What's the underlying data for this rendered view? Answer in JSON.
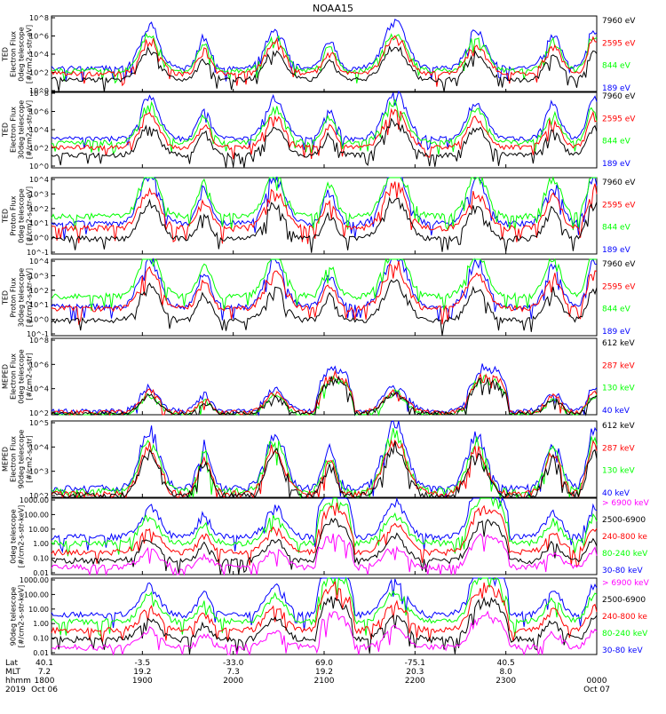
{
  "title": "NOAA15",
  "colors": {
    "blue": "#0000ff",
    "red": "#ff0000",
    "green": "#00ff00",
    "black": "#000000",
    "magenta": "#ff00ff",
    "axis": "#000000"
  },
  "chart_data": [
    {
      "type": "line",
      "panel": 1,
      "ylabel": [
        "TED",
        "Electron Flux",
        "0deg telescope",
        "[#/cm2-s-str-eV]"
      ],
      "yscale": "log",
      "ylim": [
        1,
        1000000
      ],
      "ticks": [
        "10^8",
        "10^6",
        "10^4",
        "10^2",
        "10^0"
      ],
      "legend": [
        {
          "label": "7960 eV",
          "color": "#000000"
        },
        {
          "label": "2595 eV",
          "color": "#ff0000"
        },
        {
          "label": "844 eV",
          "color": "#00ff00"
        },
        {
          "label": "189 eV",
          "color": "#0000ff"
        }
      ],
      "series": [
        {
          "name": "189 eV",
          "color": "#0000ff",
          "base": 80,
          "peak": 1.4
        },
        {
          "name": "844 eV",
          "color": "#00ff00",
          "base": 50,
          "peak": 1.2
        },
        {
          "name": "2595 eV",
          "color": "#ff0000",
          "base": 30,
          "peak": 1.1
        },
        {
          "name": "7960 eV",
          "color": "#000000",
          "base": 10,
          "peak": 1.0
        }
      ]
    },
    {
      "type": "line",
      "panel": 2,
      "ylabel": [
        "TED",
        "Electron Flux",
        "30deg telescope",
        "[#/cm2-s-str-eV]"
      ],
      "yscale": "log",
      "ylim": [
        1,
        1000000
      ],
      "ticks": [
        "10^8",
        "10^6",
        "10^4",
        "10^2",
        "10^0"
      ],
      "legend": [
        {
          "label": "7960 eV",
          "color": "#000000"
        },
        {
          "label": "2595 eV",
          "color": "#ff0000"
        },
        {
          "label": "844 eV",
          "color": "#00ff00"
        },
        {
          "label": "189 eV",
          "color": "#0000ff"
        }
      ],
      "series": [
        {
          "name": "189 eV",
          "color": "#0000ff",
          "base": 200,
          "peak": 1.4
        },
        {
          "name": "844 eV",
          "color": "#00ff00",
          "base": 100,
          "peak": 1.2
        },
        {
          "name": "2595 eV",
          "color": "#ff0000",
          "base": 40,
          "peak": 1.1
        },
        {
          "name": "7960 eV",
          "color": "#000000",
          "base": 10,
          "peak": 1.0
        }
      ]
    },
    {
      "type": "line",
      "panel": 3,
      "ylabel": [
        "TED",
        "Proton Flux",
        "0deg telescope",
        "[#/cm2-s-str-eV]"
      ],
      "yscale": "log",
      "ylim": [
        0.1,
        10000
      ],
      "ticks": [
        "10^4",
        "10^3",
        "10^2",
        "10^1",
        "10^0",
        "10^-1"
      ],
      "legend": [
        {
          "label": "7960 eV",
          "color": "#000000"
        },
        {
          "label": "2595 eV",
          "color": "#ff0000"
        },
        {
          "label": "844 eV",
          "color": "#00ff00"
        },
        {
          "label": "189 eV",
          "color": "#0000ff"
        }
      ],
      "series": [
        {
          "name": "189 eV",
          "color": "#0000ff",
          "base": 10,
          "peak": 1.4
        },
        {
          "name": "844 eV",
          "color": "#00ff00",
          "base": 30,
          "peak": 1.3
        },
        {
          "name": "2595 eV",
          "color": "#ff0000",
          "base": 5,
          "peak": 1.1
        },
        {
          "name": "7960 eV",
          "color": "#000000",
          "base": 1,
          "peak": 1.0
        }
      ]
    },
    {
      "type": "line",
      "panel": 4,
      "ylabel": [
        "TED",
        "Proton Flux",
        "30deg telescope",
        "[#/cm2-s-str-eV]"
      ],
      "yscale": "log",
      "ylim": [
        0.1,
        10000
      ],
      "ticks": [
        "10^4",
        "10^3",
        "10^2",
        "10^1",
        "10^0",
        "10^-1"
      ],
      "legend": [
        {
          "label": "7960 eV",
          "color": "#000000"
        },
        {
          "label": "2595 eV",
          "color": "#ff0000"
        },
        {
          "label": "844 eV",
          "color": "#00ff00"
        },
        {
          "label": "189 eV",
          "color": "#0000ff"
        }
      ],
      "series": [
        {
          "name": "189 eV",
          "color": "#0000ff",
          "base": 8,
          "peak": 1.4
        },
        {
          "name": "844 eV",
          "color": "#00ff00",
          "base": 40,
          "peak": 1.3
        },
        {
          "name": "2595 eV",
          "color": "#ff0000",
          "base": 6,
          "peak": 1.1
        },
        {
          "name": "7960 eV",
          "color": "#000000",
          "base": 1,
          "peak": 1.0
        }
      ]
    },
    {
      "type": "line",
      "panel": 5,
      "ylabel": [
        "MEPED",
        "Electron Flux",
        "0deg telescope",
        "[#/cm2-s-str]"
      ],
      "yscale": "log",
      "ylim": [
        100,
        100000000
      ],
      "ticks": [
        "10^8",
        "10^6",
        "10^4",
        "10^2"
      ],
      "legend": [
        {
          "label": "612 keV",
          "color": "#000000"
        },
        {
          "label": "287 keV",
          "color": "#ff0000"
        },
        {
          "label": "130 keV",
          "color": "#00ff00"
        },
        {
          "label": "40 keV",
          "color": "#0000ff"
        }
      ],
      "series": [
        {
          "name": "40 keV",
          "color": "#0000ff",
          "base": 200,
          "peak": 1.3
        },
        {
          "name": "130 keV",
          "color": "#00ff00",
          "base": 100,
          "peak": 1.1
        },
        {
          "name": "287 keV",
          "color": "#ff0000",
          "base": 150,
          "peak": 1.1
        },
        {
          "name": "612 keV",
          "color": "#000000",
          "base": 120,
          "peak": 1.0
        }
      ]
    },
    {
      "type": "line",
      "panel": 6,
      "ylabel": [
        "MEPED",
        "Electron Flux",
        "90deg telescope",
        "[#/cm2-s-str]"
      ],
      "yscale": "log",
      "ylim": [
        100,
        1000000
      ],
      "ticks": [
        "10^5",
        "10^4",
        "10^3",
        "10^2"
      ],
      "legend": [
        {
          "label": "612 keV",
          "color": "#000000"
        },
        {
          "label": "287 keV",
          "color": "#ff0000"
        },
        {
          "label": "130 keV",
          "color": "#00ff00"
        },
        {
          "label": "40 keV",
          "color": "#0000ff"
        }
      ],
      "series": [
        {
          "name": "40 keV",
          "color": "#0000ff",
          "base": 300,
          "peak": 1.3
        },
        {
          "name": "130 keV",
          "color": "#00ff00",
          "base": 200,
          "peak": 1.2
        },
        {
          "name": "287 keV",
          "color": "#ff0000",
          "base": 150,
          "peak": 1.1
        },
        {
          "name": "612 keV",
          "color": "#000000",
          "base": 120,
          "peak": 1.0
        }
      ]
    },
    {
      "type": "line",
      "panel": 7,
      "ylabel": [
        "0deg telescope",
        "[#/cm2-s-str-keV]"
      ],
      "yscale": "log",
      "ylim": [
        0.01,
        1000
      ],
      "ticks": [
        "1000.00",
        "100.00",
        "10.00",
        "1.00",
        "0.10",
        "0.01"
      ],
      "legend": [
        {
          "label": "> 6900 keV",
          "color": "#ff00ff"
        },
        {
          "label": "2500-6900",
          "color": "#000000"
        },
        {
          "label": "240-800 ke",
          "color": "#ff0000"
        },
        {
          "label": "80-240 keV",
          "color": "#00ff00"
        },
        {
          "label": "30-80 keV",
          "color": "#0000ff"
        }
      ],
      "series": [
        {
          "name": "30-80 keV",
          "color": "#0000ff",
          "base": 3,
          "peak": 1.4
        },
        {
          "name": "80-240 keV",
          "color": "#00ff00",
          "base": 1.2,
          "peak": 1.2
        },
        {
          "name": "240-800 ke",
          "color": "#ff0000",
          "base": 0.3,
          "peak": 1.1
        },
        {
          "name": "2500-6900",
          "color": "#000000",
          "base": 0.08,
          "peak": 1.0
        },
        {
          "name": "> 6900 keV",
          "color": "#ff00ff",
          "base": 0.03,
          "peak": 0.8
        }
      ]
    },
    {
      "type": "line",
      "panel": 8,
      "ylabel": [
        "90deg telescope",
        "[#/cm2-s-str-keV]"
      ],
      "yscale": "log",
      "ylim": [
        0.01,
        1000
      ],
      "ticks": [
        "1000.00",
        "100.00",
        "10.00",
        "1.00",
        "0.10",
        "0.01"
      ],
      "legend": [
        {
          "label": "> 6900 keV",
          "color": "#ff00ff"
        },
        {
          "label": "2500-6900",
          "color": "#000000"
        },
        {
          "label": "240-800 ke",
          "color": "#ff0000"
        },
        {
          "label": "80-240 keV",
          "color": "#00ff00"
        },
        {
          "label": "30-80 keV",
          "color": "#0000ff"
        }
      ],
      "series": [
        {
          "name": "30-80 keV",
          "color": "#0000ff",
          "base": 4,
          "peak": 1.4
        },
        {
          "name": "80-240 keV",
          "color": "#00ff00",
          "base": 1.5,
          "peak": 1.2
        },
        {
          "name": "240-800 ke",
          "color": "#ff0000",
          "base": 0.4,
          "peak": 1.1
        },
        {
          "name": "2500-6900",
          "color": "#000000",
          "base": 0.1,
          "peak": 1.0
        },
        {
          "name": "> 6900 keV",
          "color": "#ff00ff",
          "base": 0.03,
          "peak": 0.8
        }
      ]
    }
  ],
  "xaxis": {
    "row_labels": [
      "Lat",
      "MLT",
      "hhmm",
      "2019"
    ],
    "ticks": [
      {
        "lat": "40.1",
        "mlt": "7.2",
        "hhmm": "1800",
        "date": "Oct 06"
      },
      {
        "lat": "-3.5",
        "mlt": "19.2",
        "hhmm": "1900",
        "date": ""
      },
      {
        "lat": "-33.0",
        "mlt": "7.3",
        "hhmm": "2000",
        "date": ""
      },
      {
        "lat": "69.0",
        "mlt": "19.2",
        "hhmm": "2100",
        "date": ""
      },
      {
        "lat": "-75.1",
        "mlt": "20.3",
        "hhmm": "2200",
        "date": ""
      },
      {
        "lat": "40.5",
        "mlt": "8.0",
        "hhmm": "2300",
        "date": ""
      },
      {
        "lat": "",
        "mlt": "",
        "hhmm": "0000",
        "date": "Oct 07"
      }
    ]
  },
  "passes": [
    {
      "center": 0.18,
      "width": 0.03,
      "amp": 2.0
    },
    {
      "center": 0.28,
      "width": 0.02,
      "amp": 1.4
    },
    {
      "center": 0.41,
      "width": 0.03,
      "amp": 1.9
    },
    {
      "center": 0.51,
      "width": 0.02,
      "amp": 1.3
    },
    {
      "center": 0.63,
      "width": 0.035,
      "amp": 2.2
    },
    {
      "center": 0.78,
      "width": 0.03,
      "amp": 1.8
    },
    {
      "center": 0.92,
      "width": 0.025,
      "amp": 1.6
    },
    {
      "center": 0.995,
      "width": 0.02,
      "amp": 2.0
    }
  ],
  "domes": [
    {
      "center": 0.52,
      "width": 0.035
    },
    {
      "center": 0.8,
      "width": 0.04
    }
  ]
}
